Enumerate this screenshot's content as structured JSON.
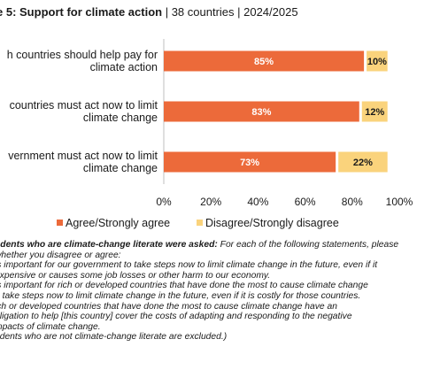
{
  "header": {
    "title_bold": "e 5: Support for climate action",
    "title_rest": " | 38 countries | 2024/2025"
  },
  "colors": {
    "agree": "#EC6A3A",
    "disagree": "#FAD37C",
    "axis": "#bfbfbf"
  },
  "chart_data": {
    "type": "bar",
    "orientation": "horizontal",
    "stacked": true,
    "title": "e 5: Support for climate action | 38 countries | 2024/2025",
    "categories": [
      [
        "h countries should help pay for",
        "climate action"
      ],
      [
        "countries must act now to limit",
        "climate change"
      ],
      [
        "vernment must act now to limit",
        "climate change"
      ]
    ],
    "series": [
      {
        "name": "Agree/Strongly agree",
        "values": [
          85,
          83,
          73
        ],
        "labels": [
          "85%",
          "83%",
          "73%"
        ]
      },
      {
        "name": "Disagree/Strongly disagree",
        "values": [
          10,
          12,
          22
        ],
        "labels": [
          "10%",
          "12%",
          "22%"
        ]
      }
    ],
    "xlim": [
      0,
      100
    ],
    "xticks": [
      "0%",
      "20%",
      "40%",
      "60%",
      "80%",
      "100%"
    ],
    "legend_position": "bottom",
    "grid": false
  },
  "notes": {
    "lead": "ndents who are climate-change literate were asked:",
    "lead_rest": " For each of the following statements, please",
    "lines": [
      " whether you disagree or agree:",
      " is important for our government to take steps now to limit climate change in the future, even if it",
      " expensive or causes some job losses or other harm to our economy.",
      " is important for rich or developed countries that have done the most to cause climate change",
      "o take steps now to limit climate change in the future, even if it is costly for those countries.",
      "ich or developed countries that have done the most to cause climate change have an",
      "bligation to help [this country] cover the costs of adapting and responding to the negative",
      "mpacts of climate change.",
      "ndents who are not climate-change literate are excluded.)"
    ]
  }
}
